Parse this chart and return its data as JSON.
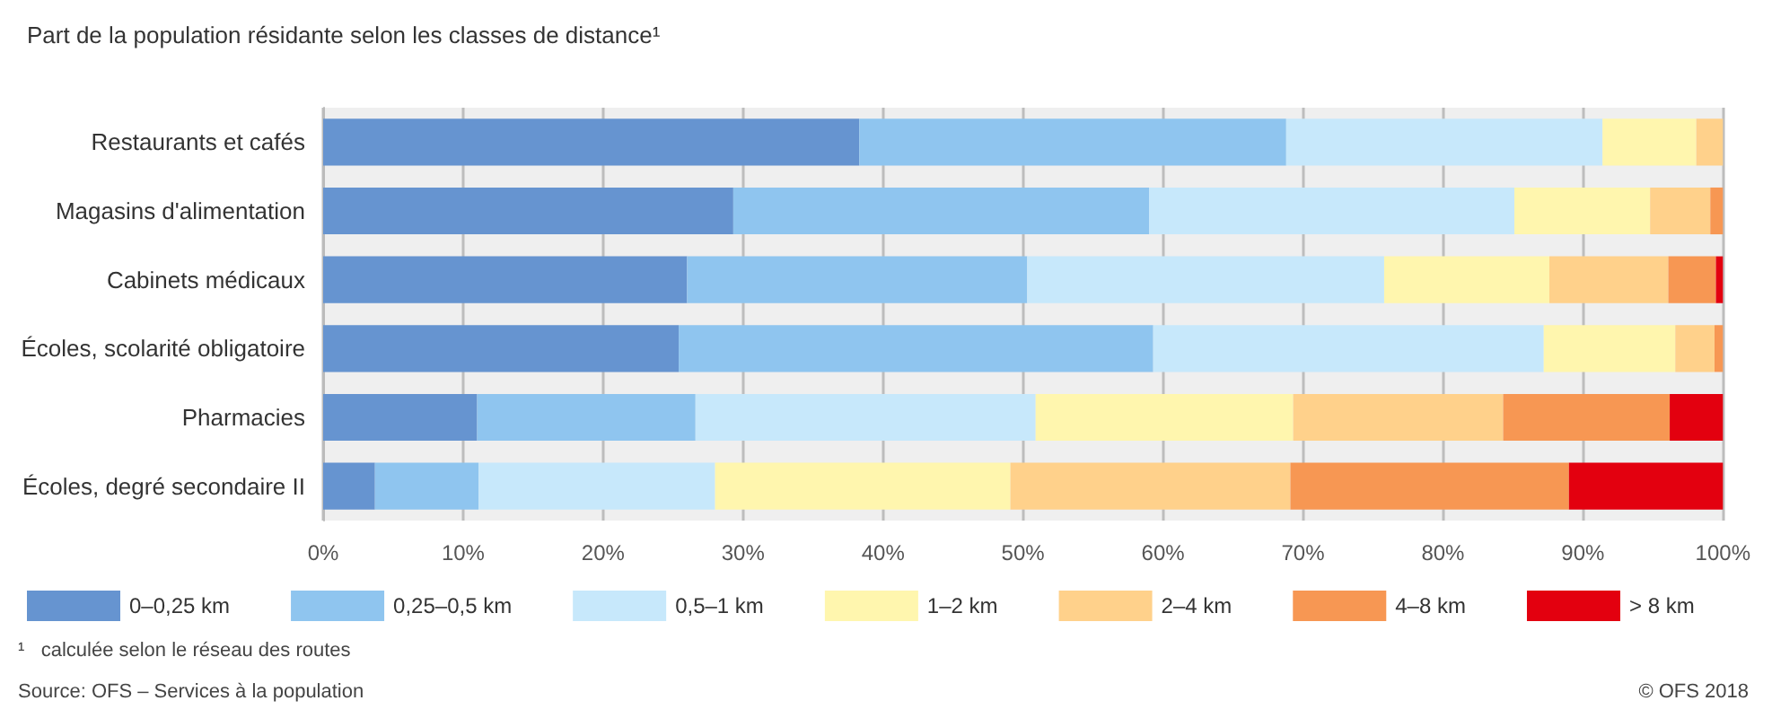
{
  "chart_data": {
    "type": "bar",
    "orientation": "horizontal",
    "stacked": true,
    "title": "Part de la population résidante selon les classes de distance¹",
    "categories": [
      "Restaurants et cafés",
      "Magasins d'alimentation",
      "Cabinets médicaux",
      "Écoles, scolarité obligatoire",
      "Pharmacies",
      "Écoles, degré secondaire II"
    ],
    "series": [
      {
        "name": "0–0,25 km",
        "color": "#6694d0",
        "values": [
          38.3,
          29.3,
          26.0,
          25.4,
          11.0,
          3.7
        ]
      },
      {
        "name": "0,25–0,5 km",
        "color": "#8fc5ef",
        "values": [
          30.5,
          29.7,
          24.3,
          33.9,
          15.6,
          7.4
        ]
      },
      {
        "name": "0,5–1 km",
        "color": "#c7e8fb",
        "values": [
          22.6,
          26.1,
          25.5,
          27.9,
          24.3,
          16.9
        ]
      },
      {
        "name": "1–2 km",
        "color": "#fff6ae",
        "values": [
          6.7,
          9.7,
          11.8,
          9.4,
          18.4,
          21.1
        ]
      },
      {
        "name": "2–4 km",
        "color": "#ffd18b",
        "values": [
          1.9,
          4.3,
          8.5,
          2.8,
          15.0,
          20.0
        ]
      },
      {
        "name": "4–8 km",
        "color": "#f79753",
        "values": [
          0,
          0.9,
          3.4,
          0.6,
          11.9,
          19.9
        ]
      },
      {
        "name": "> 8 km",
        "color": "#e3000f",
        "values": [
          0,
          0,
          0.5,
          0,
          3.8,
          11.0
        ]
      }
    ],
    "xlim": [
      0,
      100
    ],
    "xticks": [
      {
        "value": 0,
        "label": "0%"
      },
      {
        "value": 10,
        "label": "10%"
      },
      {
        "value": 20,
        "label": "20%"
      },
      {
        "value": 30,
        "label": "30%"
      },
      {
        "value": 40,
        "label": "40%"
      },
      {
        "value": 50,
        "label": "50%"
      },
      {
        "value": 60,
        "label": "60%"
      },
      {
        "value": 70,
        "label": "70%"
      },
      {
        "value": 80,
        "label": "80%"
      },
      {
        "value": 90,
        "label": "90%"
      },
      {
        "value": 100,
        "label": "100%"
      }
    ],
    "grid": "x",
    "legend": "bottom",
    "annotations": [
      "¹   calculée selon le réseau des routes",
      "Source: OFS – Services à la population",
      "© OFS 2018"
    ]
  }
}
